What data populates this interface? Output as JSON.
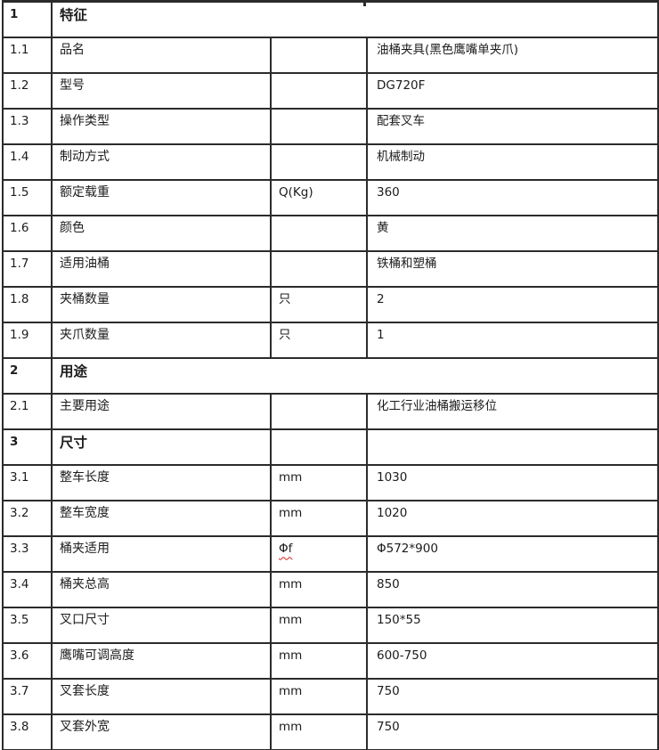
{
  "document": {
    "type": "specification-table",
    "colors": {
      "border": "#2b2b2b",
      "text": "#1c1c1c",
      "background": "#ffffff",
      "spellcheck_squiggle": "#d02020"
    },
    "columns": [
      "no",
      "label",
      "unit",
      "value"
    ]
  },
  "table": {
    "rows": [
      {
        "no": "1",
        "label": "特征",
        "unit": "",
        "value": "",
        "section": true,
        "merged": true
      },
      {
        "no": "1.1",
        "label": "品名",
        "unit": "",
        "value": "油桶夹具(黑色鹰嘴单夹爪)"
      },
      {
        "no": "1.2",
        "label": "型号",
        "unit": "",
        "value": "DG720F"
      },
      {
        "no": "1.3",
        "label": "操作类型",
        "unit": "",
        "value": "配套叉车"
      },
      {
        "no": "1.4",
        "label": "制动方式",
        "unit": "",
        "value": "机械制动"
      },
      {
        "no": "1.5",
        "label": "额定载重",
        "unit": "Q(Kg)",
        "value": "360"
      },
      {
        "no": "1.6",
        "label": "颜色",
        "unit": "",
        "value": "黄"
      },
      {
        "no": "1.7",
        "label": "适用油桶",
        "unit": "",
        "value": "铁桶和塑桶"
      },
      {
        "no": "1.8",
        "label": "夹桶数量",
        "unit": "只",
        "value": "2"
      },
      {
        "no": "1.9",
        "label": "夹爪数量",
        "unit": "只",
        "value": "1"
      },
      {
        "no": "2",
        "label": "用途",
        "unit": "",
        "value": "",
        "section": true,
        "merged": true
      },
      {
        "no": "2.1",
        "label": "主要用途",
        "unit": "",
        "value": "化工行业油桶搬运移位"
      },
      {
        "no": "3",
        "label": "尺寸",
        "unit": "",
        "value": "",
        "section": true,
        "merged": false
      },
      {
        "no": "3.1",
        "label": "整车长度",
        "unit": "mm",
        "value": "1030"
      },
      {
        "no": "3.2",
        "label": "整车宽度",
        "unit": "mm",
        "value": "1020"
      },
      {
        "no": "3.3",
        "label": "桶夹适用",
        "unit": "Φf",
        "value": "Φ572*900",
        "unit_flagged": true
      },
      {
        "no": "3.4",
        "label": "桶夹总高",
        "unit": "mm",
        "value": "850"
      },
      {
        "no": "3.5",
        "label": "叉口尺寸",
        "unit": "mm",
        "value": "150*55"
      },
      {
        "no": "3.6",
        "label": "鹰嘴可调高度",
        "unit": "mm",
        "value": "600-750"
      },
      {
        "no": "3.7",
        "label": "叉套长度",
        "unit": "mm",
        "value": "750"
      },
      {
        "no": "3.8",
        "label": "叉套外宽",
        "unit": "mm",
        "value": "750"
      }
    ]
  }
}
